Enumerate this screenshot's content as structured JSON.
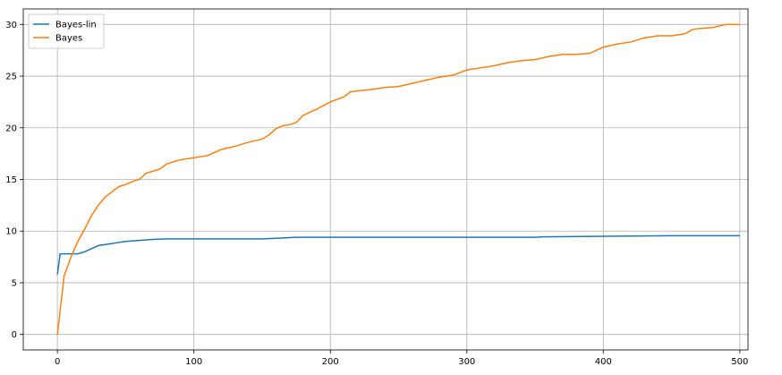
{
  "chart_data": {
    "type": "line",
    "series": [
      {
        "name": "Bayes-lin",
        "color": "#1f77b4",
        "x": [
          0,
          2,
          15,
          20,
          25,
          30,
          40,
          50,
          60,
          70,
          80,
          150,
          160,
          175,
          350,
          355,
          400,
          450,
          500
        ],
        "values": [
          5.8,
          7.8,
          7.8,
          8.0,
          8.3,
          8.6,
          8.8,
          9.0,
          9.1,
          9.2,
          9.25,
          9.25,
          9.3,
          9.4,
          9.4,
          9.45,
          9.5,
          9.55,
          9.55
        ]
      },
      {
        "name": "Bayes",
        "color": "#ff7f0e",
        "x": [
          0,
          5,
          10,
          15,
          20,
          25,
          30,
          35,
          40,
          45,
          50,
          55,
          60,
          65,
          70,
          75,
          80,
          90,
          100,
          110,
          120,
          130,
          140,
          150,
          155,
          160,
          165,
          170,
          175,
          180,
          190,
          200,
          210,
          215,
          230,
          240,
          250,
          260,
          270,
          280,
          290,
          300,
          310,
          320,
          330,
          340,
          350,
          360,
          370,
          380,
          390,
          400,
          410,
          420,
          430,
          440,
          450,
          460,
          465,
          470,
          480,
          490,
          500
        ],
        "values": [
          0,
          5.7,
          7.5,
          9.0,
          10.2,
          11.5,
          12.5,
          13.3,
          13.8,
          14.3,
          14.5,
          14.8,
          15.0,
          15.6,
          15.8,
          16.0,
          16.5,
          16.9,
          17.1,
          17.3,
          17.9,
          18.2,
          18.6,
          18.9,
          19.3,
          19.9,
          20.2,
          20.3,
          20.5,
          21.2,
          21.8,
          22.5,
          23.0,
          23.5,
          23.7,
          23.9,
          24.0,
          24.3,
          24.6,
          24.9,
          25.1,
          25.6,
          25.8,
          26.0,
          26.3,
          26.5,
          26.6,
          26.9,
          27.1,
          27.1,
          27.2,
          27.8,
          28.1,
          28.3,
          28.7,
          28.9,
          28.9,
          29.1,
          29.5,
          29.6,
          29.7,
          30.0,
          30.0
        ]
      }
    ],
    "xlim": [
      -25,
      506
    ],
    "xticks": [
      0,
      100,
      200,
      300,
      400,
      500
    ],
    "ylim": [
      -1.5,
      31.5
    ],
    "yticks": [
      0,
      5,
      10,
      15,
      20,
      25,
      30
    ],
    "grid": true,
    "legend": "upper left"
  }
}
